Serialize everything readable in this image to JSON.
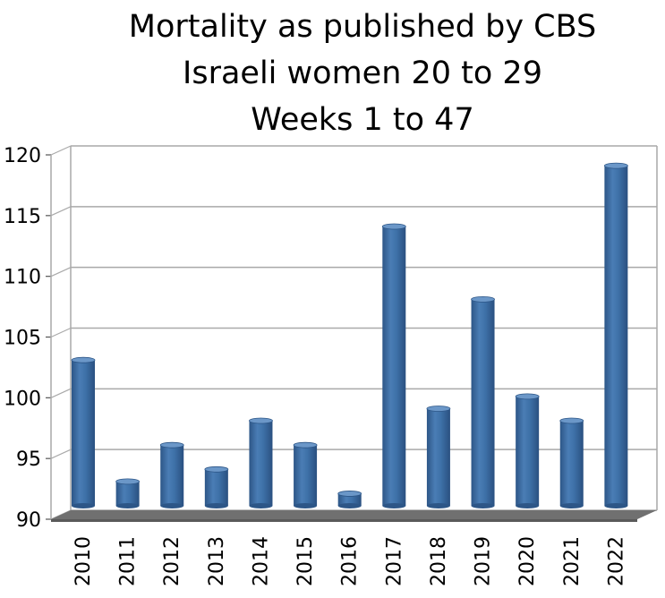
{
  "chart_data": {
    "type": "bar",
    "title_lines": [
      "Mortality as published by CBS",
      "Israeli women 20 to 29",
      "Weeks 1 to 47"
    ],
    "xlabel": "",
    "ylabel": "",
    "categories": [
      "2010",
      "2011",
      "2012",
      "2013",
      "2014",
      "2015",
      "2016",
      "2017",
      "2018",
      "2019",
      "2020",
      "2021",
      "2022"
    ],
    "values": [
      102,
      92,
      95,
      93,
      97,
      95,
      91,
      113,
      98,
      107,
      99,
      97,
      118
    ],
    "ylim": [
      90,
      120
    ],
    "yticks": [
      "90",
      "95",
      "100",
      "105",
      "110",
      "115",
      "120"
    ],
    "grid": true,
    "legend": "none",
    "style": "3d-cylinder",
    "bar_color": "#3e71a8",
    "bar_dark": "#2d5687",
    "bar_light": "#6b97c8",
    "floor_color": "#707070",
    "grid_color": "#a9a9a9"
  }
}
